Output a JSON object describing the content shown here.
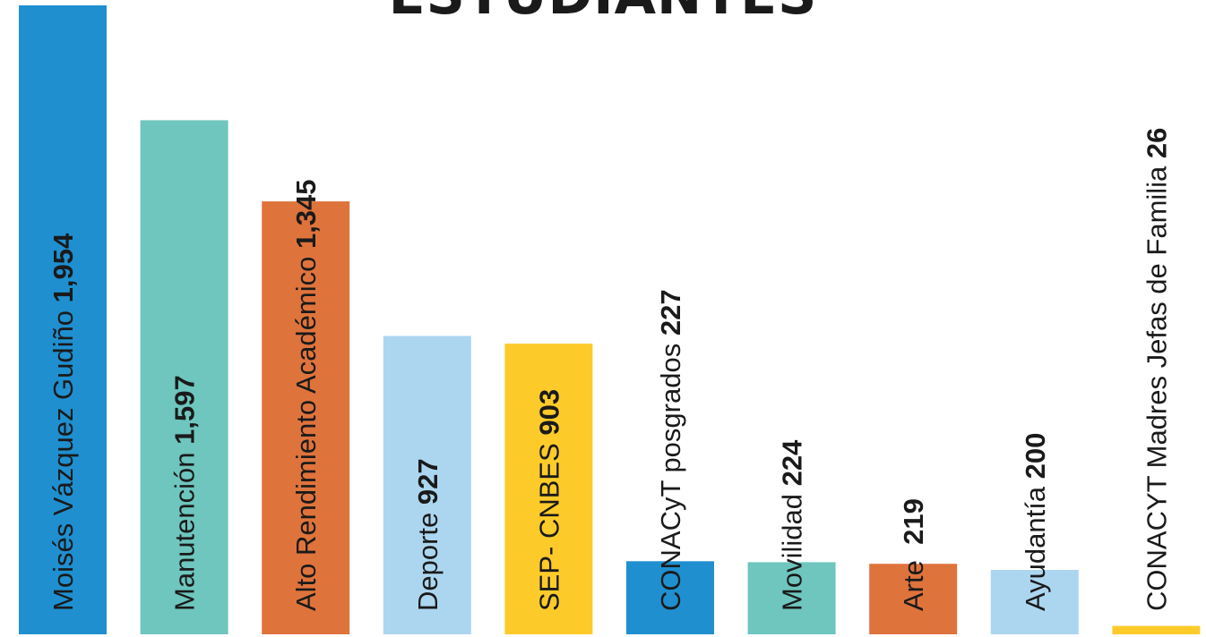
{
  "title": "ESTUDIANTES",
  "chart_data": {
    "type": "bar",
    "title": "ESTUDIANTES",
    "xlabel": "",
    "ylabel": "",
    "categories": [
      "Moisés Vázquez Gudiño",
      "Manutención",
      "Alto Rendimiento Académico",
      "Deporte",
      "SEP- CNBES",
      "CONACyT posgrados",
      "Movilidad",
      "Arte",
      "Ayudantía",
      "CONACYT Madres Jefas de Familia"
    ],
    "values": [
      1954,
      1597,
      1345,
      927,
      903,
      227,
      224,
      219,
      200,
      26
    ],
    "value_labels": [
      "1,954",
      "1,597",
      "1,345",
      "927",
      "903",
      "227",
      "224",
      "219",
      "200",
      "26"
    ],
    "label_separators": [
      " ",
      " ",
      " ",
      " ",
      " ",
      " ",
      " ",
      "  ",
      " ",
      " "
    ],
    "colors": [
      "#1f8fd0",
      "#6ec6be",
      "#df733c",
      "#acd6f0",
      "#fccb2a",
      "#1f8fd0",
      "#6ec6be",
      "#df733c",
      "#acd6f0",
      "#fccb2a"
    ],
    "ylim": [
      0,
      1954
    ],
    "grid": false,
    "legend": "none"
  }
}
